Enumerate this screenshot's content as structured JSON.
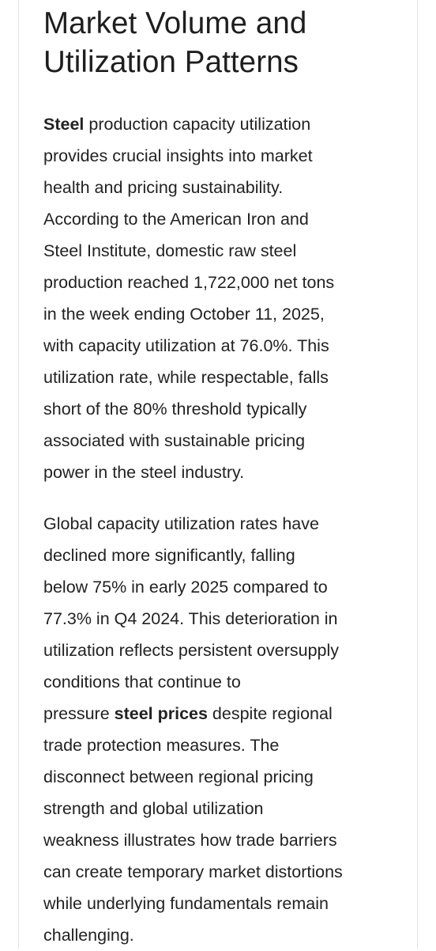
{
  "article": {
    "heading_lines": [
      "Market Volume and",
      "Utilization Patterns"
    ],
    "paragraph1": {
      "bold_lead": "Steel",
      "line1_rest": " production capacity utilization",
      "lines": [
        "provides crucial insights into market",
        "health and pricing sustainability.",
        "According to the American Iron and",
        "Steel Institute, domestic raw steel",
        "production reached 1,722,000 net tons",
        "in the week ending October 11, 2025,",
        "with capacity utilization at 76.0%. This",
        "utilization rate, while respectable, falls",
        "short of the 80% threshold typically",
        "associated with sustainable pricing",
        "power in the steel industry."
      ]
    },
    "paragraph2": {
      "lines_before": [
        "Global capacity utilization rates have",
        "declined more significantly, falling",
        "below 75% in early 2025 compared to",
        "77.3% in Q4 2024. This deterioration in",
        "utilization reflects persistent oversupply",
        "conditions that continue to"
      ],
      "bold_line_prefix": "pressure ",
      "bold_text": "steel prices",
      "bold_line_suffix": " despite regional",
      "lines_after": [
        "trade protection measures. The",
        "disconnect between regional pricing",
        "strength and global utilization",
        "weakness illustrates how trade barriers",
        "can create temporary market distortions",
        "while underlying fundamentals remain",
        "challenging."
      ]
    }
  }
}
